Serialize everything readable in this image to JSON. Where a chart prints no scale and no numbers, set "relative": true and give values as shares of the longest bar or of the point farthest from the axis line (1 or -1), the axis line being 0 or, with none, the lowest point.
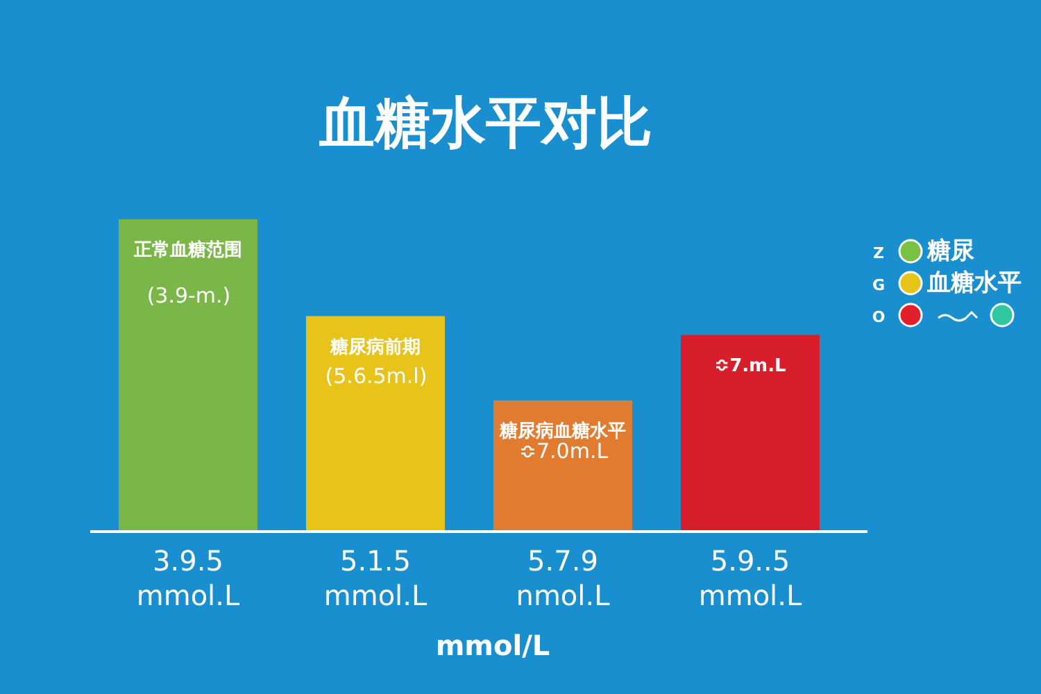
{
  "chart_data": {
    "type": "bar",
    "title": "血糖水平对比",
    "xlabel": "mmol/L",
    "relative": true,
    "categories": [
      "3.9.5 mmol.L",
      "5.1.5 mmol.L",
      "5.7.9 nmol.L",
      "5.9..5 mmol.L"
    ],
    "values": [
      1,
      0.69,
      0.42,
      0.63
    ],
    "colors": [
      "#7ab648",
      "#e8c41a",
      "#e07b30",
      "#d81e2a"
    ],
    "annotations": [
      {
        "text": "正常血糖范围",
        "x": "3.9.5 mmol.L",
        "y": 1
      },
      "(3.9-m.)",
      {
        "text": "糖尿病前期",
        "x": "5.1.5 mmol.L",
        "y": 0.69
      },
      "(5.6.5m.l)",
      {
        "text": "糖尿病血糖水平",
        "x": "5.7.9 nmol.L",
        "y": 0.42
      },
      "≎7.0m.L",
      {
        "text": "≎7.m.L",
        "x": "5.9..5 mmol.L",
        "y": 0.63
      },
      "Z",
      "糖尿",
      "G",
      "血糖水平",
      "O"
    ]
  }
}
